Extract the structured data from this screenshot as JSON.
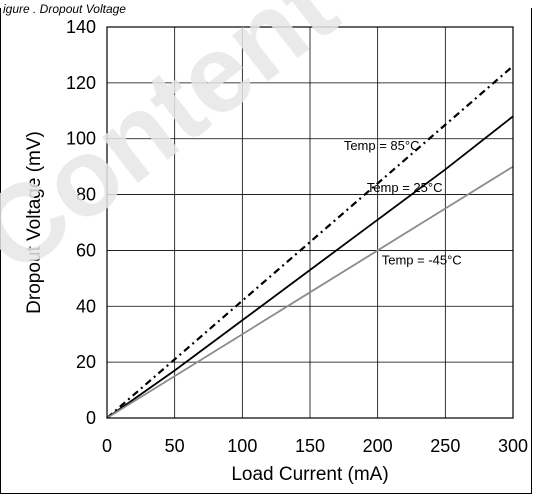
{
  "caption": "igure . Dropout Voltage",
  "watermark_text": "Content",
  "chart_data": {
    "type": "line",
    "xlabel": "Load Current (mA)",
    "ylabel": "Dropout Voltage (mV)",
    "xlim": [
      0,
      300
    ],
    "ylim": [
      0,
      140
    ],
    "x_ticks": [
      0,
      50,
      100,
      150,
      200,
      250,
      300
    ],
    "y_ticks": [
      0,
      20,
      40,
      60,
      80,
      100,
      120,
      140
    ],
    "x_tick_labels": [
      "0",
      "50",
      "100",
      "150",
      "200",
      "250",
      "300"
    ],
    "y_tick_labels": [
      "0",
      "20",
      "40",
      "60",
      "80",
      "100",
      "120",
      "140"
    ],
    "grid": true,
    "series": [
      {
        "name": "Temp = 85°C",
        "style": "dash-dot",
        "color": "#000000",
        "x": [
          0,
          50,
          100,
          150,
          200,
          250,
          300
        ],
        "y": [
          0,
          21,
          42,
          63,
          84,
          105,
          126
        ]
      },
      {
        "name": "Temp = 25°C",
        "style": "solid",
        "color": "#000000",
        "x": [
          0,
          50,
          100,
          150,
          200,
          250,
          300
        ],
        "y": [
          0,
          17,
          35,
          53,
          71,
          89,
          108
        ]
      },
      {
        "name": "Temp = -45°C",
        "style": "solid",
        "color": "#8c8c8c",
        "x": [
          0,
          50,
          100,
          150,
          200,
          250,
          300
        ],
        "y": [
          0,
          15,
          30,
          45,
          60,
          75,
          90
        ]
      }
    ],
    "annotations": [
      {
        "text": "Temp = 85°C",
        "x": 175,
        "y": 96
      },
      {
        "text": "Temp = 25°C",
        "x": 192,
        "y": 81
      },
      {
        "text": "Temp = -45°C",
        "x": 203,
        "y": 55
      }
    ]
  }
}
